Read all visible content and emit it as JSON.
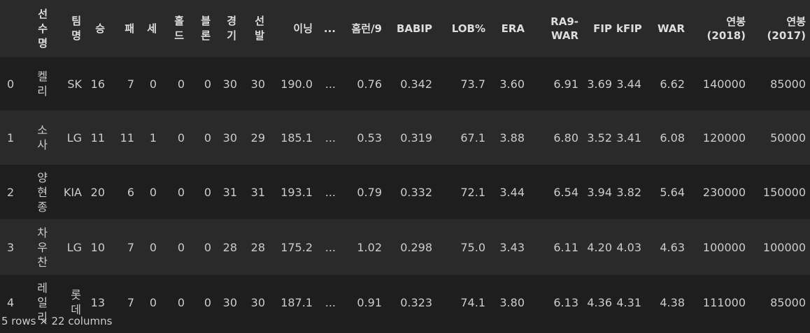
{
  "table": {
    "columns": [
      "",
      "선수명",
      "팀명",
      "승",
      "패",
      "세",
      "홀드",
      "블론",
      "경기",
      "선발",
      "이닝",
      "...",
      "홈런/9",
      "BABIP",
      "LOB%",
      "ERA",
      "RA9-WAR",
      "FIP",
      "kFIP",
      "WAR",
      "연봉 (2018)",
      "연봉 (2017)"
    ],
    "rows": [
      [
        "0",
        "켈리",
        "SK",
        "16",
        "7",
        "0",
        "0",
        "0",
        "30",
        "30",
        "190.0",
        "...",
        "0.76",
        "0.342",
        "73.7",
        "3.60",
        "6.91",
        "3.69",
        "3.44",
        "6.62",
        "140000",
        "85000"
      ],
      [
        "1",
        "소사",
        "LG",
        "11",
        "11",
        "1",
        "0",
        "0",
        "30",
        "29",
        "185.1",
        "...",
        "0.53",
        "0.319",
        "67.1",
        "3.88",
        "6.80",
        "3.52",
        "3.41",
        "6.08",
        "120000",
        "50000"
      ],
      [
        "2",
        "양현종",
        "KIA",
        "20",
        "6",
        "0",
        "0",
        "0",
        "31",
        "31",
        "193.1",
        "...",
        "0.79",
        "0.332",
        "72.1",
        "3.44",
        "6.54",
        "3.94",
        "3.82",
        "5.64",
        "230000",
        "150000"
      ],
      [
        "3",
        "차우찬",
        "LG",
        "10",
        "7",
        "0",
        "0",
        "0",
        "28",
        "28",
        "175.2",
        "...",
        "1.02",
        "0.298",
        "75.0",
        "3.43",
        "6.11",
        "4.20",
        "4.03",
        "4.63",
        "100000",
        "100000"
      ],
      [
        "4",
        "레일리",
        "롯데",
        "13",
        "7",
        "0",
        "0",
        "0",
        "30",
        "30",
        "187.1",
        "...",
        "0.91",
        "0.323",
        "74.1",
        "3.80",
        "6.13",
        "4.36",
        "4.31",
        "4.38",
        "111000",
        "85000"
      ]
    ]
  },
  "footer": "5 rows × 22 columns"
}
